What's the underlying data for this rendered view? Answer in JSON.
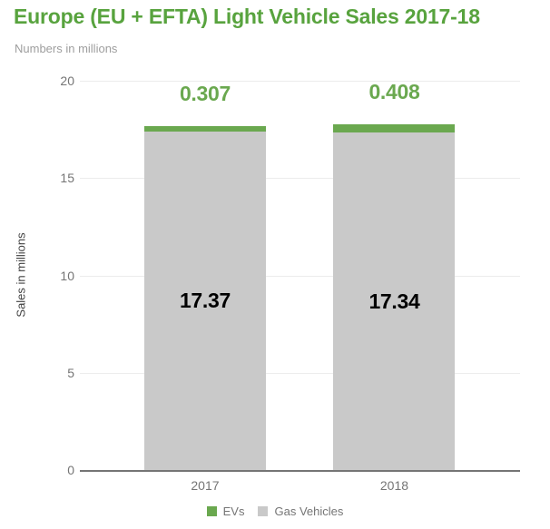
{
  "colors": {
    "title_green": "#58a33e",
    "ev_green": "#6aa84f",
    "gas_gray": "#c9c9c9",
    "gridline": "#ececec",
    "axis_line": "#757575",
    "tick_text": "#757575",
    "subtitle_text": "#9e9e9e",
    "gas_label_text": "#000000",
    "y_title_text": "#424242"
  },
  "chart_data": {
    "type": "bar",
    "stacked": true,
    "title": "Europe (EU + EFTA) Light Vehicle Sales 2017-18",
    "subtitle": "Numbers in millions",
    "ylabel": "Sales in millions",
    "xlabel": "",
    "categories": [
      "2017",
      "2018"
    ],
    "series": [
      {
        "name": "Gas Vehicles",
        "values": [
          17.37,
          17.34
        ],
        "labels": [
          "17.37",
          "17.34"
        ],
        "color": "#c9c9c9",
        "label_color": "#000000",
        "label_position": "inside-center"
      },
      {
        "name": "EVs",
        "values": [
          0.307,
          0.408
        ],
        "labels": [
          "0.307",
          "0.408"
        ],
        "color": "#6aa84f",
        "label_color": "#6aa84f",
        "label_position": "above-bar"
      }
    ],
    "ylim": [
      0,
      20
    ],
    "yticks": [
      0,
      5,
      10,
      15,
      20
    ],
    "grid": true,
    "legend_position": "bottom",
    "legend": [
      {
        "label": "EVs",
        "color": "#6aa84f"
      },
      {
        "label": "Gas Vehicles",
        "color": "#c9c9c9"
      }
    ]
  }
}
